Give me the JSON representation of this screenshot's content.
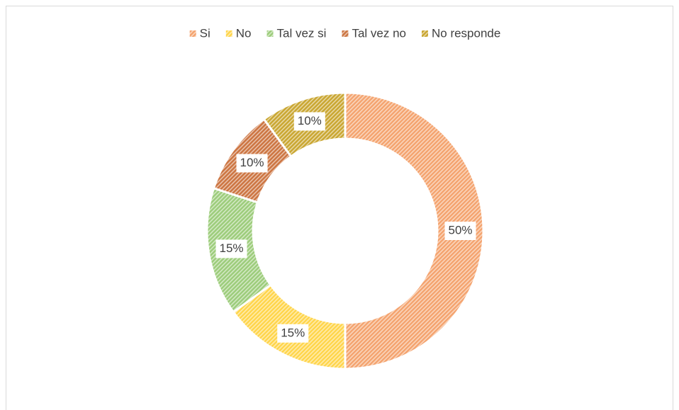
{
  "chart_data": {
    "type": "doughnut",
    "categories": [
      "Si",
      "No",
      "Tal vez si",
      "Tal vez no",
      "No responde"
    ],
    "values": [
      50,
      15,
      15,
      10,
      10
    ],
    "value_labels": [
      "50%",
      "15%",
      "15%",
      "10%",
      "10%"
    ],
    "colors": [
      "#f4a36e",
      "#ffd54a",
      "#9ccc7a",
      "#cc7440",
      "#c9a630"
    ],
    "legend": "top"
  }
}
